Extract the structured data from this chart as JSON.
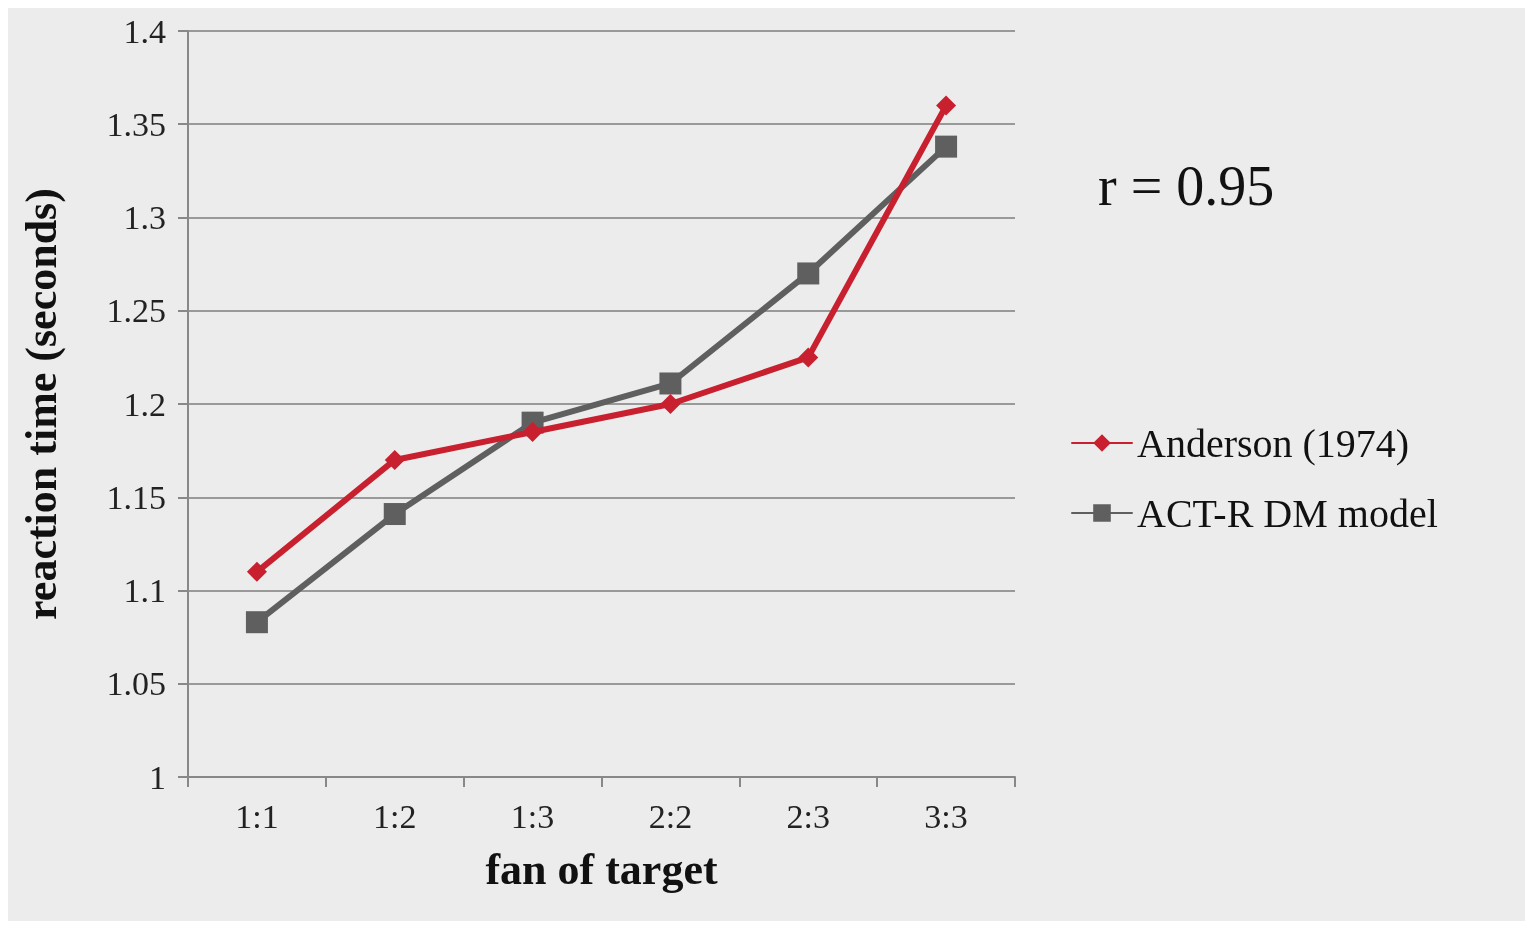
{
  "chart_data": {
    "type": "line",
    "xlabel": "fan of target",
    "ylabel": "reaction time (seconds)",
    "categories": [
      "1:1",
      "1:2",
      "1:3",
      "2:2",
      "2:3",
      "3:3"
    ],
    "series": [
      {
        "name": "Anderson (1974)",
        "color": "#c8202f",
        "marker": "diamond",
        "values": [
          1.11,
          1.17,
          1.185,
          1.2,
          1.225,
          1.36
        ]
      },
      {
        "name": "ACT-R DM model",
        "color": "#5f5f5f",
        "marker": "square",
        "values": [
          1.083,
          1.141,
          1.19,
          1.211,
          1.27,
          1.338
        ]
      }
    ],
    "ylim": [
      1,
      1.4
    ],
    "yticks": [
      1,
      1.05,
      1.1,
      1.15,
      1.2,
      1.25,
      1.3,
      1.35,
      1.4
    ],
    "grid": "y",
    "legend": "right",
    "line_style": "solid",
    "annotations": [
      "r = 0.95"
    ]
  }
}
